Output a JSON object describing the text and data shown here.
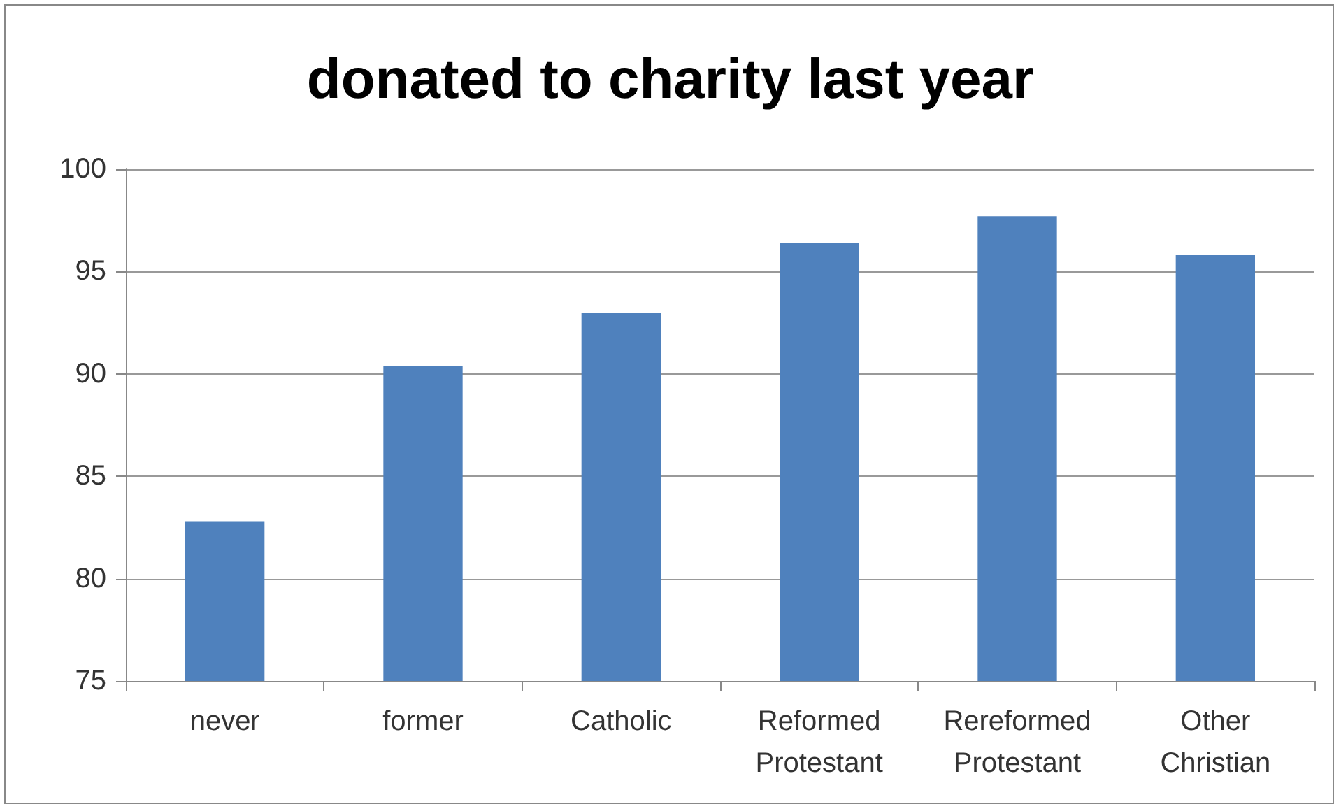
{
  "chart_data": {
    "type": "bar",
    "title": "donated to charity last year",
    "categories": [
      "never",
      "former",
      "Catholic",
      "Reformed\nProtestant",
      "Rereformed\nProtestant",
      "Other\nChristian"
    ],
    "values": [
      82.8,
      90.4,
      93.0,
      96.4,
      97.7,
      95.8
    ],
    "color": "#4f81bd",
    "ylim": [
      75,
      100
    ],
    "yticks": [
      75,
      80,
      85,
      90,
      95,
      100
    ],
    "grid": "y"
  }
}
